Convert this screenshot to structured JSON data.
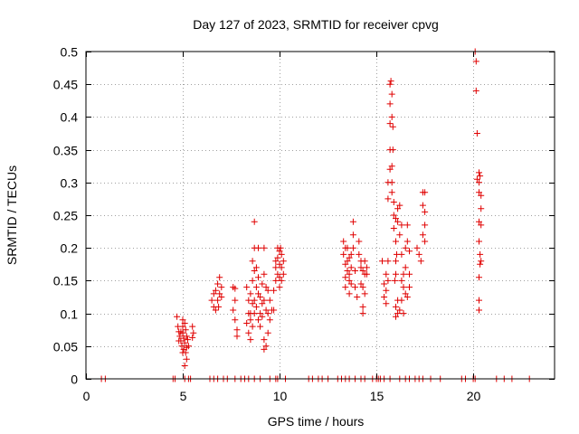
{
  "chart_data": {
    "type": "scatter",
    "title": "Day 127 of 2023, SRMTID for receiver cpvg",
    "xlabel": "GPS time / hours",
    "ylabel": "SRMTID / TECUs",
    "xlim": [
      0,
      24.2
    ],
    "ylim": [
      0,
      0.5
    ],
    "x_ticks": [
      0,
      5,
      10,
      15,
      20
    ],
    "x_tick_labels": [
      "0",
      "5",
      "10",
      "15",
      "20"
    ],
    "y_ticks": [
      0,
      0.05,
      0.1,
      0.15,
      0.2,
      0.25,
      0.3,
      0.35,
      0.4,
      0.45,
      0.5
    ],
    "y_tick_labels": [
      "0",
      "0.05",
      "0.1",
      "0.15",
      "0.2",
      "0.25",
      "0.3",
      "0.35",
      "0.4",
      "0.45",
      "0.5"
    ],
    "grid": true,
    "marker": "plus",
    "color": "#e00000",
    "series": [
      {
        "name": "SRMTID",
        "points": [
          [
            0.8,
            0
          ],
          [
            1.0,
            0
          ],
          [
            4.5,
            0
          ],
          [
            4.6,
            0
          ],
          [
            5.1,
            0
          ],
          [
            5.3,
            0
          ],
          [
            5.4,
            0
          ],
          [
            6.4,
            0
          ],
          [
            6.6,
            0
          ],
          [
            6.8,
            0
          ],
          [
            7.1,
            0
          ],
          [
            7.3,
            0
          ],
          [
            7.7,
            0
          ],
          [
            8.0,
            0
          ],
          [
            8.2,
            0
          ],
          [
            8.4,
            0
          ],
          [
            8.7,
            0
          ],
          [
            9.0,
            0
          ],
          [
            9.5,
            0
          ],
          [
            9.8,
            0
          ],
          [
            9.9,
            0
          ],
          [
            10.3,
            0
          ],
          [
            11.5,
            0
          ],
          [
            11.7,
            0
          ],
          [
            12.0,
            0
          ],
          [
            12.2,
            0
          ],
          [
            12.5,
            0
          ],
          [
            13.0,
            0
          ],
          [
            13.2,
            0
          ],
          [
            13.4,
            0
          ],
          [
            13.6,
            0
          ],
          [
            13.9,
            0
          ],
          [
            14.2,
            0
          ],
          [
            14.4,
            0
          ],
          [
            14.8,
            0
          ],
          [
            15.0,
            0
          ],
          [
            15.1,
            0
          ],
          [
            15.2,
            0
          ],
          [
            15.4,
            0
          ],
          [
            15.7,
            0
          ],
          [
            16.2,
            0
          ],
          [
            16.5,
            0
          ],
          [
            16.7,
            0
          ],
          [
            17.0,
            0
          ],
          [
            17.2,
            0
          ],
          [
            17.4,
            0
          ],
          [
            17.8,
            0
          ],
          [
            18.3,
            0
          ],
          [
            19.4,
            0
          ],
          [
            19.6,
            0
          ],
          [
            20.0,
            0
          ],
          [
            20.1,
            0
          ],
          [
            21.2,
            0
          ],
          [
            21.6,
            0
          ],
          [
            22.0,
            0
          ],
          [
            22.9,
            0
          ],
          [
            4.7,
            0.095
          ],
          [
            4.75,
            0.08
          ],
          [
            4.8,
            0.072
          ],
          [
            4.85,
            0.065
          ],
          [
            4.9,
            0.058
          ],
          [
            4.95,
            0.05
          ],
          [
            5.0,
            0.09
          ],
          [
            5.0,
            0.07
          ],
          [
            5.05,
            0.062
          ],
          [
            5.05,
            0.045
          ],
          [
            5.1,
            0.085
          ],
          [
            5.1,
            0.055
          ],
          [
            5.15,
            0.04
          ],
          [
            5.15,
            0.075
          ],
          [
            5.2,
            0.03
          ],
          [
            5.2,
            0.065
          ],
          [
            5.25,
            0.06
          ],
          [
            5.3,
            0.05
          ],
          [
            4.8,
            0.058
          ],
          [
            4.9,
            0.072
          ],
          [
            5.0,
            0.08
          ],
          [
            5.0,
            0.04
          ],
          [
            5.1,
            0.02
          ],
          [
            5.2,
            0.048
          ],
          [
            5.5,
            0.08
          ],
          [
            5.55,
            0.07
          ],
          [
            5.5,
            0.063
          ],
          [
            6.5,
            0.12
          ],
          [
            6.6,
            0.11
          ],
          [
            6.7,
            0.135
          ],
          [
            6.7,
            0.105
          ],
          [
            6.8,
            0.145
          ],
          [
            6.8,
            0.12
          ],
          [
            6.9,
            0.155
          ],
          [
            6.9,
            0.13
          ],
          [
            7.0,
            0.14
          ],
          [
            7.0,
            0.125
          ],
          [
            6.6,
            0.13
          ],
          [
            6.85,
            0.11
          ],
          [
            7.6,
            0.14
          ],
          [
            7.7,
            0.138
          ],
          [
            7.6,
            0.105
          ],
          [
            7.7,
            0.09
          ],
          [
            7.8,
            0.075
          ],
          [
            7.8,
            0.065
          ],
          [
            7.7,
            0.12
          ],
          [
            8.3,
            0.085
          ],
          [
            8.4,
            0.1
          ],
          [
            8.4,
            0.07
          ],
          [
            8.5,
            0.13
          ],
          [
            8.5,
            0.09
          ],
          [
            8.5,
            0.06
          ],
          [
            8.6,
            0.18
          ],
          [
            8.6,
            0.15
          ],
          [
            8.6,
            0.115
          ],
          [
            8.7,
            0.24
          ],
          [
            8.7,
            0.2
          ],
          [
            8.7,
            0.165
          ],
          [
            8.7,
            0.12
          ],
          [
            8.7,
            0.1
          ],
          [
            8.8,
            0.17
          ],
          [
            8.8,
            0.14
          ],
          [
            8.8,
            0.11
          ],
          [
            8.9,
            0.155
          ],
          [
            8.9,
            0.13
          ],
          [
            8.9,
            0.09
          ],
          [
            9.0,
            0.125
          ],
          [
            9.0,
            0.1
          ],
          [
            9.1,
            0.145
          ],
          [
            9.1,
            0.115
          ],
          [
            9.1,
            0.095
          ],
          [
            9.2,
            0.2
          ],
          [
            9.2,
            0.16
          ],
          [
            9.2,
            0.12
          ],
          [
            9.2,
            0.06
          ],
          [
            9.3,
            0.14
          ],
          [
            9.3,
            0.105
          ],
          [
            9.3,
            0.05
          ],
          [
            9.4,
            0.135
          ],
          [
            9.4,
            0.1
          ],
          [
            9.4,
            0.07
          ],
          [
            9.5,
            0.12
          ],
          [
            9.5,
            0.09
          ],
          [
            8.3,
            0.14
          ],
          [
            8.4,
            0.12
          ],
          [
            8.5,
            0.1
          ],
          [
            8.6,
            0.08
          ],
          [
            8.9,
            0.2
          ],
          [
            9.0,
            0.08
          ],
          [
            9.2,
            0.045
          ],
          [
            9.6,
            0.105
          ],
          [
            9.7,
            0.105
          ],
          [
            9.8,
            0.15
          ],
          [
            9.8,
            0.17
          ],
          [
            9.9,
            0.2
          ],
          [
            9.9,
            0.185
          ],
          [
            9.9,
            0.16
          ],
          [
            10.0,
            0.195
          ],
          [
            10.0,
            0.175
          ],
          [
            10.0,
            0.155
          ],
          [
            10.0,
            0.14
          ],
          [
            10.1,
            0.19
          ],
          [
            10.1,
            0.17
          ],
          [
            10.1,
            0.15
          ],
          [
            10.2,
            0.18
          ],
          [
            10.2,
            0.16
          ],
          [
            9.7,
            0.135
          ],
          [
            9.8,
            0.18
          ],
          [
            10.05,
            0.2
          ],
          [
            13.3,
            0.21
          ],
          [
            13.3,
            0.19
          ],
          [
            13.4,
            0.175
          ],
          [
            13.4,
            0.155
          ],
          [
            13.4,
            0.14
          ],
          [
            13.5,
            0.2
          ],
          [
            13.5,
            0.18
          ],
          [
            13.5,
            0.165
          ],
          [
            13.6,
            0.185
          ],
          [
            13.6,
            0.16
          ],
          [
            13.6,
            0.15
          ],
          [
            13.7,
            0.19
          ],
          [
            13.7,
            0.17
          ],
          [
            13.7,
            0.145
          ],
          [
            13.8,
            0.24
          ],
          [
            13.8,
            0.22
          ],
          [
            13.8,
            0.2
          ],
          [
            13.9,
            0.165
          ],
          [
            13.9,
            0.14
          ],
          [
            14.0,
            0.125
          ],
          [
            14.1,
            0.21
          ],
          [
            14.1,
            0.19
          ],
          [
            14.2,
            0.18
          ],
          [
            14.2,
            0.17
          ],
          [
            14.2,
            0.145
          ],
          [
            14.3,
            0.165
          ],
          [
            14.3,
            0.14
          ],
          [
            14.3,
            0.11
          ],
          [
            14.4,
            0.18
          ],
          [
            14.4,
            0.16
          ],
          [
            14.4,
            0.13
          ],
          [
            14.5,
            0.17
          ],
          [
            14.5,
            0.16
          ],
          [
            13.4,
            0.2
          ],
          [
            13.6,
            0.13
          ],
          [
            14.3,
            0.1
          ],
          [
            15.3,
            0.18
          ],
          [
            15.4,
            0.145
          ],
          [
            15.4,
            0.125
          ],
          [
            15.5,
            0.16
          ],
          [
            15.5,
            0.135
          ],
          [
            15.5,
            0.115
          ],
          [
            15.6,
            0.3
          ],
          [
            15.6,
            0.275
          ],
          [
            15.6,
            0.18
          ],
          [
            15.6,
            0.15
          ],
          [
            15.7,
            0.45
          ],
          [
            15.7,
            0.42
          ],
          [
            15.7,
            0.39
          ],
          [
            15.7,
            0.35
          ],
          [
            15.7,
            0.32
          ],
          [
            15.75,
            0.455
          ],
          [
            15.8,
            0.435
          ],
          [
            15.8,
            0.4
          ],
          [
            15.8,
            0.325
          ],
          [
            15.8,
            0.3
          ],
          [
            15.8,
            0.285
          ],
          [
            15.85,
            0.385
          ],
          [
            15.85,
            0.35
          ],
          [
            15.9,
            0.27
          ],
          [
            15.9,
            0.25
          ],
          [
            15.9,
            0.23
          ],
          [
            16.0,
            0.245
          ],
          [
            16.0,
            0.21
          ],
          [
            16.0,
            0.18
          ],
          [
            16.0,
            0.16
          ],
          [
            16.0,
            0.11
          ],
          [
            16.0,
            0.095
          ],
          [
            16.1,
            0.26
          ],
          [
            16.1,
            0.24
          ],
          [
            16.1,
            0.12
          ],
          [
            16.1,
            0.1
          ],
          [
            16.2,
            0.265
          ],
          [
            16.2,
            0.22
          ],
          [
            16.2,
            0.105
          ],
          [
            16.3,
            0.235
          ],
          [
            16.3,
            0.19
          ],
          [
            16.3,
            0.15
          ],
          [
            16.3,
            0.12
          ],
          [
            16.4,
            0.16
          ],
          [
            16.4,
            0.14
          ],
          [
            16.4,
            0.1
          ],
          [
            16.5,
            0.2
          ],
          [
            16.5,
            0.17
          ],
          [
            16.5,
            0.13
          ],
          [
            16.6,
            0.235
          ],
          [
            16.6,
            0.21
          ],
          [
            16.6,
            0.125
          ],
          [
            16.7,
            0.195
          ],
          [
            16.7,
            0.16
          ],
          [
            16.7,
            0.14
          ],
          [
            15.95,
            0.15
          ],
          [
            16.05,
            0.19
          ],
          [
            17.1,
            0.2
          ],
          [
            17.2,
            0.19
          ],
          [
            17.3,
            0.18
          ],
          [
            17.4,
            0.285
          ],
          [
            17.4,
            0.265
          ],
          [
            17.5,
            0.285
          ],
          [
            17.5,
            0.255
          ],
          [
            17.5,
            0.235
          ],
          [
            17.4,
            0.22
          ],
          [
            17.5,
            0.21
          ],
          [
            20.1,
            0.5
          ],
          [
            20.15,
            0.485
          ],
          [
            20.15,
            0.44
          ],
          [
            20.2,
            0.375
          ],
          [
            20.3,
            0.315
          ],
          [
            20.3,
            0.3
          ],
          [
            20.3,
            0.285
          ],
          [
            20.2,
            0.305
          ],
          [
            20.35,
            0.31
          ],
          [
            20.4,
            0.28
          ],
          [
            20.4,
            0.26
          ],
          [
            20.3,
            0.24
          ],
          [
            20.4,
            0.235
          ],
          [
            20.3,
            0.21
          ],
          [
            20.35,
            0.19
          ],
          [
            20.4,
            0.18
          ],
          [
            20.3,
            0.155
          ],
          [
            20.3,
            0.12
          ],
          [
            20.3,
            0.105
          ],
          [
            20.35,
            0.175
          ]
        ]
      }
    ]
  }
}
